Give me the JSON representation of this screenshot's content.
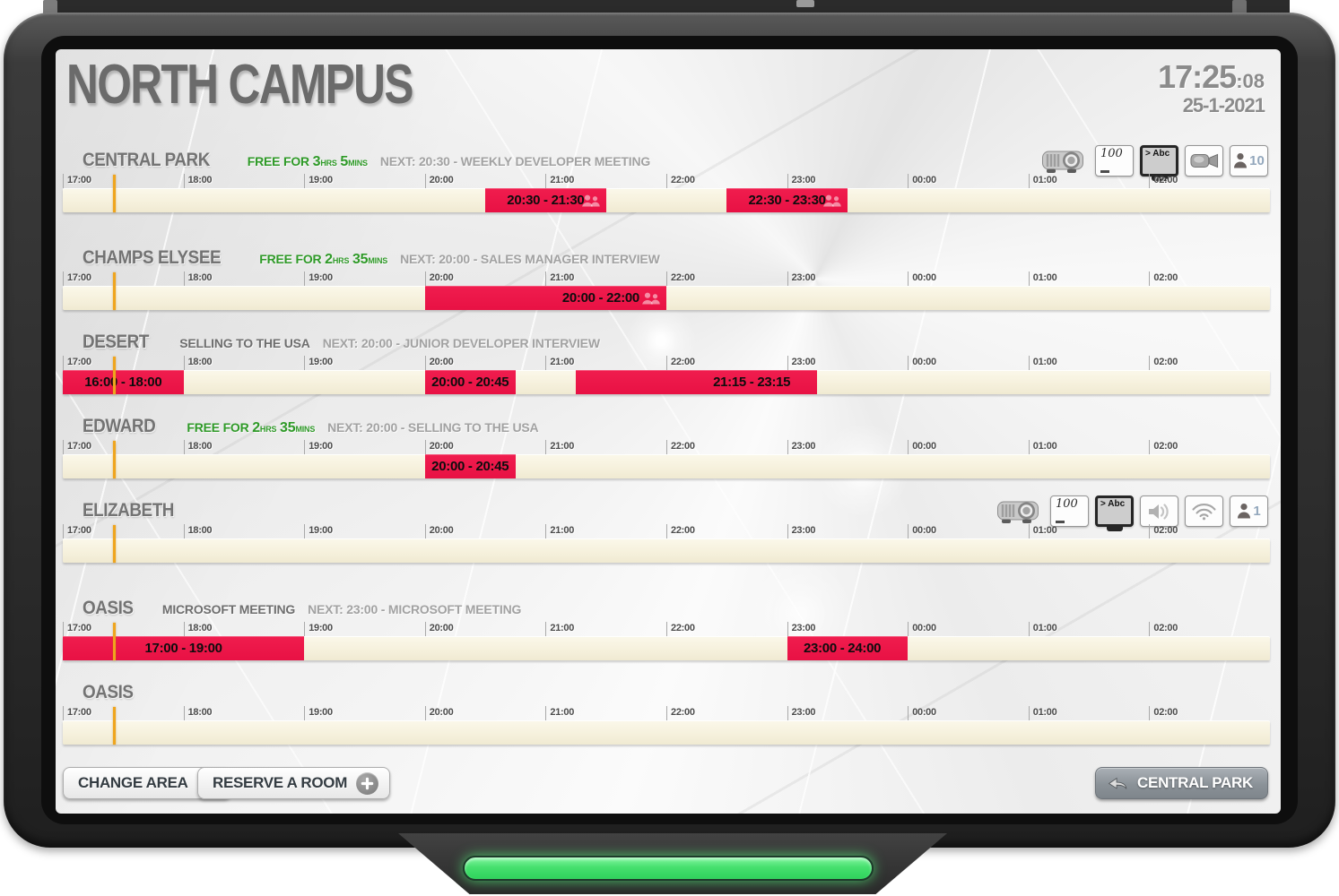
{
  "header": {
    "title": "NORTH CAMPUS",
    "time": "17:25",
    "seconds": ":08",
    "date": "25-1-2021"
  },
  "timeline": {
    "hours": [
      "17:00",
      "18:00",
      "19:00",
      "20:00",
      "21:00",
      "22:00",
      "23:00",
      "00:00",
      "01:00",
      "02:00"
    ],
    "start": "17:00",
    "span_hours": 10,
    "now": "17:25"
  },
  "status_labels": {
    "free_prefix": "FREE FOR",
    "hrs_unit": "HRS",
    "mins_unit": "MINS"
  },
  "colors": {
    "booking_red": "#e81144",
    "free_green": "#2f9a28",
    "now_line": "#efa51e",
    "bar_cream": "#f6f1dd",
    "led_green": "#46e06e"
  },
  "rooms": [
    {
      "name": "CENTRAL PARK",
      "status": {
        "type": "free",
        "hours": "3",
        "minutes": "5"
      },
      "next": "NEXT: 20:30 - WEEKLY DEVELOPER MEETING",
      "features": [
        {
          "icon": "projector-icon"
        },
        {
          "icon": "whiteboard-icon",
          "label": "100"
        },
        {
          "icon": "screen-icon",
          "label": "> Abc"
        },
        {
          "icon": "camera-icon"
        },
        {
          "icon": "capacity-icon",
          "label": "10"
        }
      ],
      "bookings": [
        {
          "label": "20:30 - 21:30",
          "start": "20:30",
          "end": "21:30",
          "people": true,
          "align": "center"
        },
        {
          "label": "22:30 - 23:30",
          "start": "22:30",
          "end": "23:30",
          "people": true,
          "align": "center"
        }
      ]
    },
    {
      "name": "CHAMPS ELYSEE",
      "status": {
        "type": "free",
        "hours": "2",
        "minutes": "35"
      },
      "next": "NEXT: 20:00 - SALES MANAGER INTERVIEW",
      "features": [],
      "bookings": [
        {
          "label": "20:00 - 22:00",
          "start": "20:00",
          "end": "22:00",
          "people": true,
          "align": "right"
        }
      ]
    },
    {
      "name": "DESERT",
      "status": {
        "type": "busy",
        "title": "SELLING TO THE USA"
      },
      "next": "NEXT: 20:00 - JUNIOR DEVELOPER INTERVIEW",
      "features": [],
      "bookings": [
        {
          "label": "16:00 - 18:00",
          "start": "16:00",
          "end": "18:00",
          "people": false,
          "align": "center"
        },
        {
          "label": "20:00 - 20:45",
          "start": "20:00",
          "end": "20:45",
          "people": false,
          "align": "center"
        },
        {
          "label": "21:15 - 23:15",
          "start": "21:15",
          "end": "23:15",
          "people": false,
          "align": "right"
        }
      ]
    },
    {
      "name": "EDWARD",
      "status": {
        "type": "free",
        "hours": "2",
        "minutes": "35"
      },
      "next": "NEXT: 20:00 - SELLING TO THE USA",
      "features": [],
      "bookings": [
        {
          "label": "20:00 - 20:45",
          "start": "20:00",
          "end": "20:45",
          "people": false,
          "align": "center"
        }
      ]
    },
    {
      "name": "ELIZABETH",
      "status": null,
      "next": null,
      "features": [
        {
          "icon": "projector-icon"
        },
        {
          "icon": "whiteboard-icon",
          "label": "100"
        },
        {
          "icon": "screen-icon",
          "label": "> Abc"
        },
        {
          "icon": "speaker-icon"
        },
        {
          "icon": "wifi-icon"
        },
        {
          "icon": "capacity-icon",
          "label": "1"
        }
      ],
      "bookings": []
    },
    {
      "name": "OASIS",
      "status": {
        "type": "busy",
        "title": "MICROSOFT MEETING"
      },
      "next": "NEXT: 23:00 - MICROSOFT MEETING",
      "features": [],
      "bookings": [
        {
          "label": "17:00 - 19:00",
          "start": "17:00",
          "end": "19:00",
          "people": false,
          "align": "center"
        },
        {
          "label": "23:00 - 24:00",
          "start": "23:00",
          "end": "24:00",
          "people": false,
          "align": "right"
        }
      ]
    },
    {
      "name": "OASIS",
      "status": null,
      "next": null,
      "features": [],
      "bookings": []
    }
  ],
  "footer": {
    "change_area": "CHANGE AREA",
    "reserve_room": "RESERVE A ROOM",
    "back_button": "CENTRAL PARK"
  }
}
